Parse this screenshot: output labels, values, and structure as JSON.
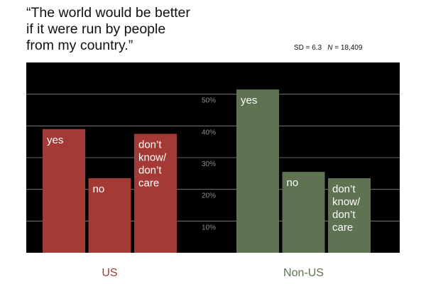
{
  "title_lines": [
    "“The world would be better",
    "if it were run by people",
    "from my country.”"
  ],
  "stats": {
    "sd_label": "SD = 6.3",
    "n_symbol": "N",
    "n_value": "= 18,409"
  },
  "chart_data": {
    "type": "bar",
    "title": "“The world would be better if it were run by people from my country.”",
    "ylabel": "",
    "ylim": [
      0,
      60
    ],
    "ticks": [
      10,
      20,
      30,
      40,
      50
    ],
    "tick_labels": [
      "10%",
      "20%",
      "30%",
      "40%",
      "50%"
    ],
    "grid": true,
    "background_color": "#000000",
    "groups": [
      {
        "name": "US",
        "color": "#a33a36",
        "categories": [
          {
            "key": "yes",
            "label_lines": [
              "yes"
            ]
          },
          {
            "key": "no",
            "label_lines": [
              "no"
            ]
          },
          {
            "key": "dont-know",
            "label_lines": [
              "don’t",
              "know/",
              "don’t",
              "care"
            ]
          }
        ],
        "values": [
          39,
          23.5,
          37.5
        ]
      },
      {
        "name": "Non-US",
        "color": "#5e7352",
        "categories": [
          {
            "key": "yes",
            "label_lines": [
              "yes"
            ]
          },
          {
            "key": "no",
            "label_lines": [
              "no"
            ]
          },
          {
            "key": "dont-know",
            "label_lines": [
              "don’t",
              "know/",
              "don’t",
              "care"
            ]
          }
        ],
        "values": [
          51.5,
          25.5,
          23.5
        ]
      }
    ]
  }
}
